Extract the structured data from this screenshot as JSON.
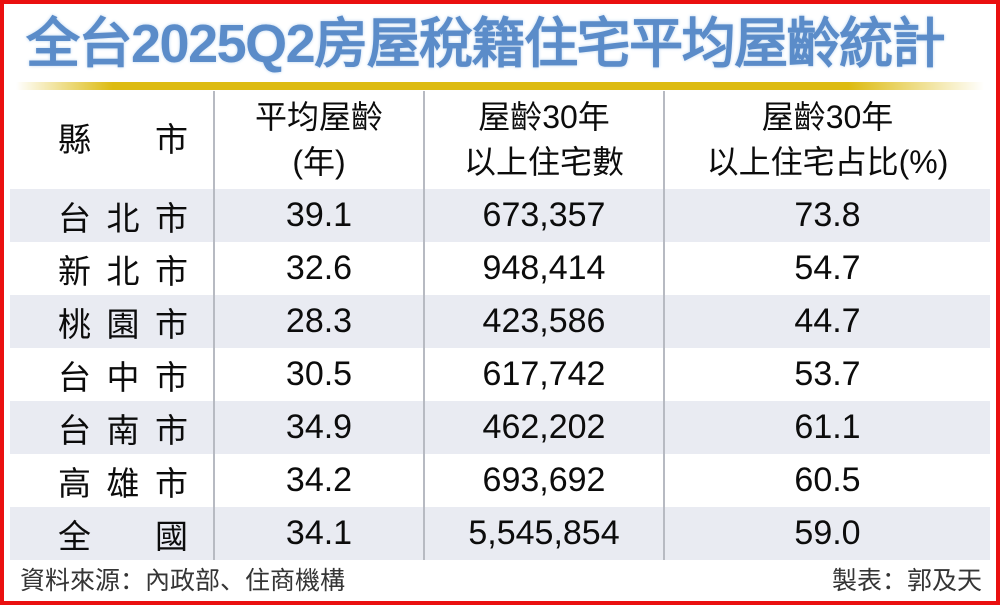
{
  "title": "全台2025Q2房屋稅籍住宅平均屋齡統計",
  "colors": {
    "frame_red": "#ea0f0f",
    "title_blue": "#5b8cc9",
    "divider_gold": "#ddbb11",
    "row_alt_bg": "#e9ebf2",
    "column_divider": "#b7bac2"
  },
  "table": {
    "headers": {
      "city": "縣市",
      "age": [
        "平均屋齡",
        "(年)"
      ],
      "count": [
        "屋齡30年",
        "以上住宅數"
      ],
      "ratio": [
        "屋齡30年",
        "以上住宅占比(%)"
      ]
    },
    "rows": [
      {
        "region": "台北市",
        "avg_age": "39.1",
        "count": "673,357",
        "ratio": "73.8"
      },
      {
        "region": "新北市",
        "avg_age": "32.6",
        "count": "948,414",
        "ratio": "54.7"
      },
      {
        "region": "桃園市",
        "avg_age": "28.3",
        "count": "423,586",
        "ratio": "44.7"
      },
      {
        "region": "台中市",
        "avg_age": "30.5",
        "count": "617,742",
        "ratio": "53.7"
      },
      {
        "region": "台南市",
        "avg_age": "34.9",
        "count": "462,202",
        "ratio": "61.1"
      },
      {
        "region": "高雄市",
        "avg_age": "34.2",
        "count": "693,692",
        "ratio": "60.5"
      },
      {
        "region": "全國",
        "avg_age": "34.1",
        "count": "5,545,854",
        "ratio": "59.0"
      }
    ]
  },
  "footer": {
    "source": "資料來源：內政部、住商機構",
    "credit": "製表：郭及天"
  },
  "chart_data": {
    "type": "table",
    "title": "全台2025Q2房屋稅籍住宅平均屋齡統計",
    "columns": [
      "縣市",
      "平均屋齡(年)",
      "屋齡30年以上住宅數",
      "屋齡30年以上住宅占比(%)"
    ],
    "rows": [
      [
        "台北市",
        39.1,
        673357,
        73.8
      ],
      [
        "新北市",
        32.6,
        948414,
        54.7
      ],
      [
        "桃園市",
        28.3,
        423586,
        44.7
      ],
      [
        "台中市",
        30.5,
        617742,
        53.7
      ],
      [
        "台南市",
        34.9,
        462202,
        61.1
      ],
      [
        "高雄市",
        34.2,
        693692,
        60.5
      ],
      [
        "全國",
        34.1,
        5545854,
        59.0
      ]
    ]
  }
}
